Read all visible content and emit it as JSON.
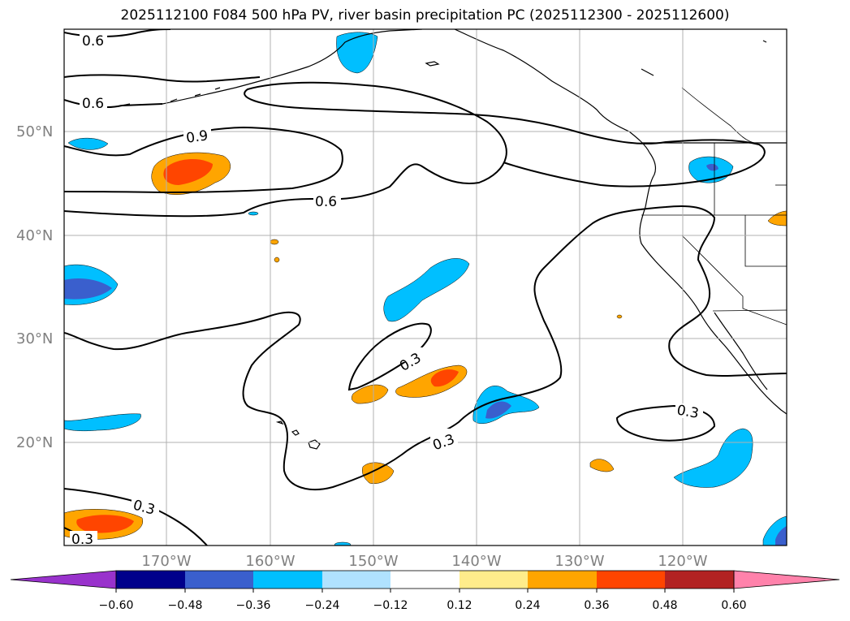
{
  "title": "2025112100 F084 500 hPa PV, river basin precipitation PC (2025112300 - 2025112600)",
  "map": {
    "lat_labels": [
      "50°N",
      "40°N",
      "30°N",
      "20°N"
    ],
    "lon_labels": [
      "170°W",
      "160°W",
      "150°W",
      "140°W",
      "130°W",
      "120°W"
    ],
    "contour_labels": [
      "0.6",
      "0.6",
      "0.9",
      "0.6",
      "0.3",
      "0.3",
      "0.3",
      "0.3",
      "0.3"
    ],
    "colors": {
      "land_line": "#000000",
      "grid": "#b0b0b0",
      "contour": "#000000",
      "axis_label": "#808080"
    }
  },
  "colorbar": {
    "tick_labels": [
      "−0.60",
      "−0.48",
      "−0.36",
      "−0.24",
      "−0.12",
      "0.12",
      "0.24",
      "0.36",
      "0.48",
      "0.60"
    ],
    "colors": [
      "#9932cc",
      "#00008b",
      "#3a5fcd",
      "#00bfff",
      "#b0e2ff",
      "#ffffff",
      "#ffec8b",
      "#ffa500",
      "#ff4500",
      "#b22222",
      "#ff82ab"
    ]
  }
}
